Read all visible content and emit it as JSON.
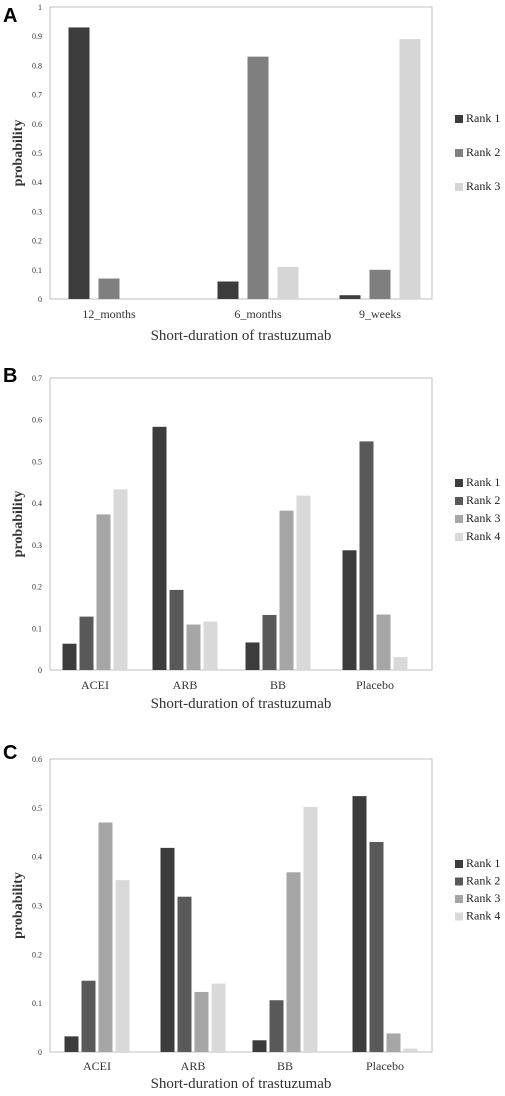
{
  "chart_data": [
    {
      "panel": "A",
      "type": "bar",
      "categories": [
        "12_months",
        "6_months",
        "9_weeks"
      ],
      "series": [
        {
          "name": "Rank 1",
          "color": "#3c3c3c",
          "values": [
            0.93,
            0.06,
            0.013
          ]
        },
        {
          "name": "Rank 2",
          "color": "#7f7f7f",
          "values": [
            0.07,
            0.83,
            0.1
          ]
        },
        {
          "name": "Rank 3",
          "color": "#d6d6d6",
          "values": [
            0.002,
            0.11,
            0.89
          ]
        }
      ],
      "ylim": [
        0,
        1
      ],
      "yticks": [
        "0",
        "0.1",
        "0.2",
        "0.3",
        "0.4",
        "0.5",
        "0.6",
        "0.7",
        "0.8",
        "0.9",
        "1"
      ],
      "xlabel": "Short-duration of trastuzumab",
      "ylabel": "probability",
      "grid": false,
      "legend_position": "right"
    },
    {
      "panel": "B",
      "type": "bar",
      "categories": [
        "ACEI",
        "ARB",
        "BB",
        "Placebo"
      ],
      "series": [
        {
          "name": "Rank 1",
          "color": "#3c3c3c",
          "values": [
            0.063,
            0.583,
            0.066,
            0.287
          ]
        },
        {
          "name": "Rank 2",
          "color": "#595959",
          "values": [
            0.128,
            0.192,
            0.132,
            0.548
          ]
        },
        {
          "name": "Rank 3",
          "color": "#a6a6a6",
          "values": [
            0.373,
            0.109,
            0.382,
            0.133
          ]
        },
        {
          "name": "Rank 4",
          "color": "#d9d9d9",
          "values": [
            0.433,
            0.116,
            0.418,
            0.031
          ]
        }
      ],
      "ylim": [
        0,
        0.7
      ],
      "yticks": [
        "0",
        "0.1",
        "0.2",
        "0.3",
        "0.4",
        "0.5",
        "0.6",
        "0.7"
      ],
      "xlabel": "Short-duration of trastuzumab",
      "ylabel": "probability",
      "grid": false,
      "legend_position": "right"
    },
    {
      "panel": "C",
      "type": "bar",
      "categories": [
        "ACEI",
        "ARB",
        "BB",
        "Placebo"
      ],
      "series": [
        {
          "name": "Rank 1",
          "color": "#3c3c3c",
          "values": [
            0.032,
            0.418,
            0.024,
            0.524
          ]
        },
        {
          "name": "Rank 2",
          "color": "#595959",
          "values": [
            0.146,
            0.318,
            0.106,
            0.43
          ]
        },
        {
          "name": "Rank 3",
          "color": "#a6a6a6",
          "values": [
            0.47,
            0.123,
            0.368,
            0.038
          ]
        },
        {
          "name": "Rank 4",
          "color": "#d9d9d9",
          "values": [
            0.352,
            0.14,
            0.502,
            0.007
          ]
        }
      ],
      "ylim": [
        0,
        0.6
      ],
      "yticks": [
        "0",
        "0.1",
        "0.2",
        "0.3",
        "0.4",
        "0.5",
        "0.6"
      ],
      "xlabel": "Short-duration of trastuzumab",
      "ylabel": "probability",
      "grid": false,
      "legend_position": "right"
    }
  ]
}
